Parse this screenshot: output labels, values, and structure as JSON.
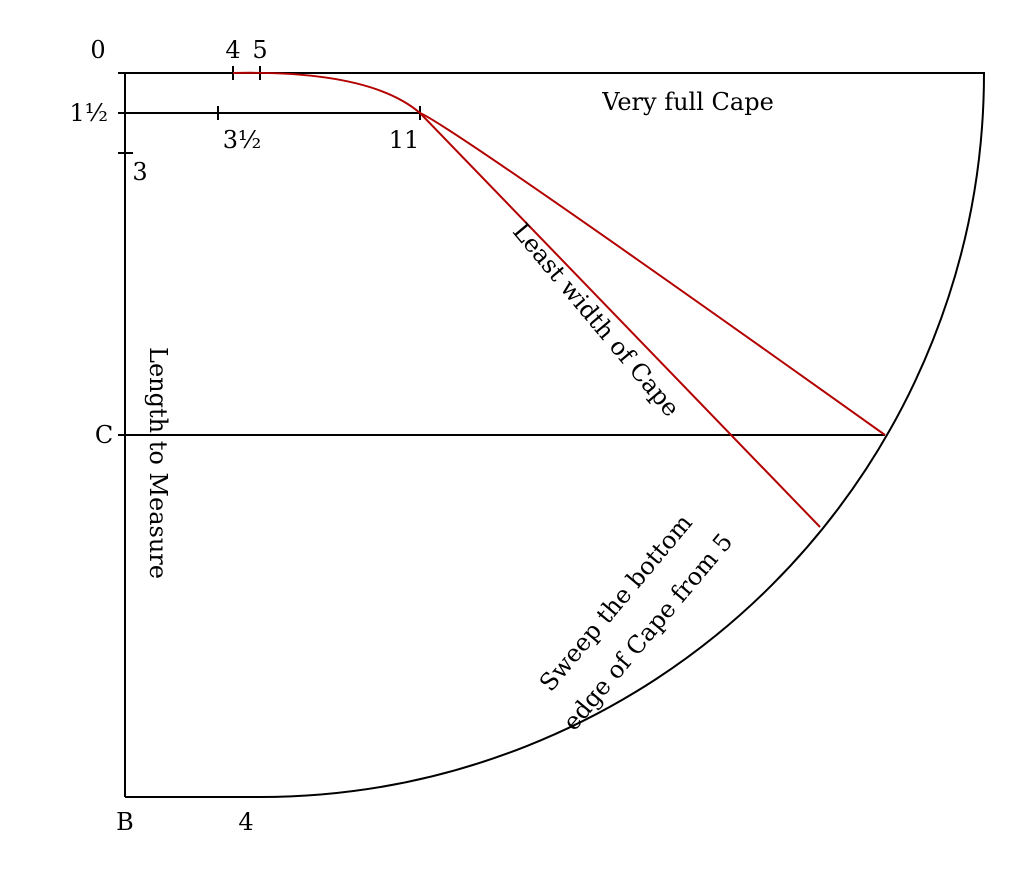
{
  "points": {
    "top_0": "0",
    "top_4": "4",
    "top_5": "5",
    "left_1_half": "1½",
    "mid_3_half": "3½",
    "mid_11": "11",
    "left_3": "3",
    "c": "C",
    "b": "B",
    "bottom_4": "4"
  },
  "annotations": {
    "very_full": "Very full Cape",
    "least_width": "Least width of Cape",
    "length": "Length to Measure",
    "sweep": [
      "Sweep the bottom",
      "edge of Cape from 5"
    ]
  }
}
